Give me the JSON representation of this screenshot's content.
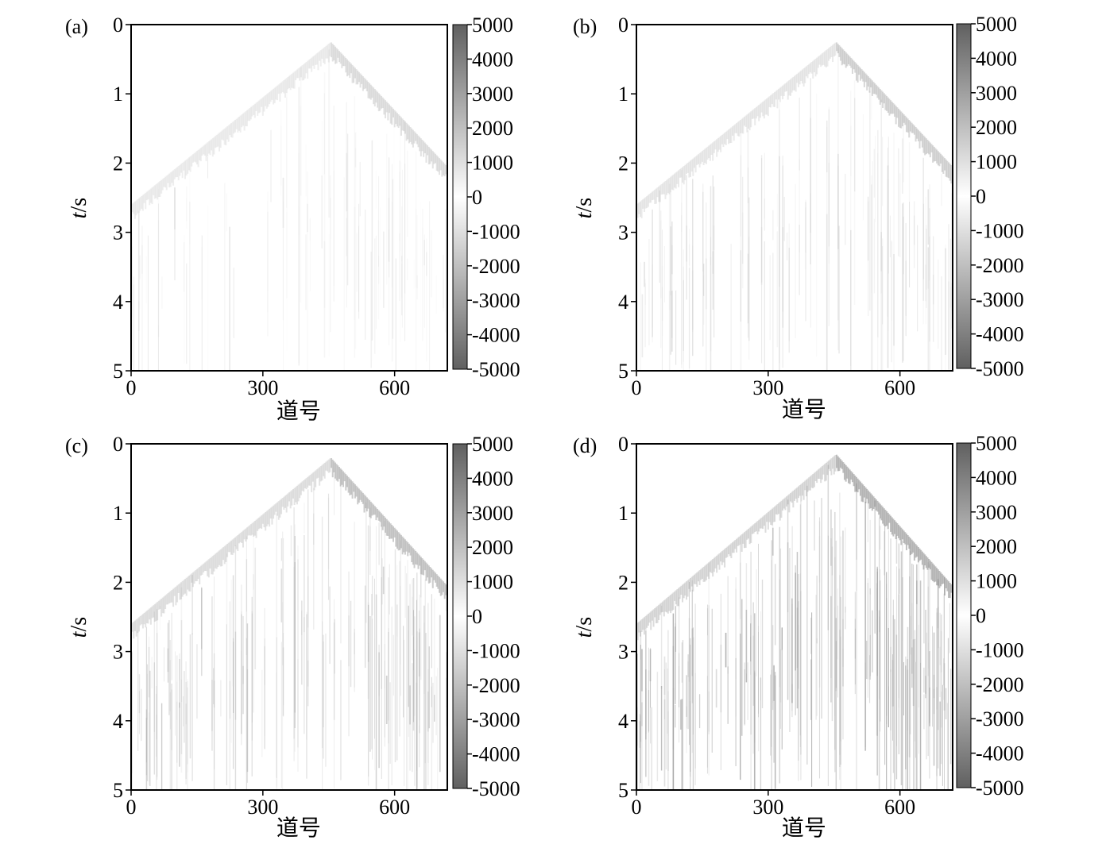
{
  "chart_data": [
    {
      "type": "heatmap",
      "panel_label": "(a)",
      "xlabel": "道号",
      "ylabel_italic": "t",
      "ylabel_unit": "/s",
      "xlim": [
        0,
        720
      ],
      "ylim": [
        0,
        5
      ],
      "x_ticks": [
        0,
        300,
        600
      ],
      "y_ticks": [
        0,
        1,
        2,
        3,
        4,
        5
      ],
      "colorbar_ticks": [
        5000,
        4000,
        3000,
        2000,
        1000,
        0,
        -1000,
        -2000,
        -3000,
        -4000,
        -5000
      ],
      "colorbar_range": [
        -5000,
        5000
      ],
      "colormap": "gray (dark at ±5000, white at 0)",
      "apex": {
        "trace": 455,
        "time": 0.25
      },
      "intensity": 0.45
    },
    {
      "type": "heatmap",
      "panel_label": "(b)",
      "xlabel": "道号",
      "ylabel_italic": "t",
      "ylabel_unit": "/s",
      "xlim": [
        0,
        720
      ],
      "ylim": [
        0,
        5
      ],
      "x_ticks": [
        0,
        300,
        600
      ],
      "y_ticks": [
        0,
        1,
        2,
        3,
        4,
        5
      ],
      "colorbar_ticks": [
        5000,
        4000,
        3000,
        2000,
        1000,
        0,
        -1000,
        -2000,
        -3000,
        -4000,
        -5000
      ],
      "colorbar_range": [
        -5000,
        5000
      ],
      "colormap": "gray (dark at ±5000, white at 0)",
      "apex": {
        "trace": 455,
        "time": 0.25
      },
      "intensity": 0.6
    },
    {
      "type": "heatmap",
      "panel_label": "(c)",
      "xlabel": "道号",
      "ylabel_italic": "t",
      "ylabel_unit": "/s",
      "xlim": [
        0,
        720
      ],
      "ylim": [
        0,
        5
      ],
      "x_ticks": [
        0,
        300,
        600
      ],
      "y_ticks": [
        0,
        1,
        2,
        3,
        4,
        5
      ],
      "colorbar_ticks": [
        5000,
        4000,
        3000,
        2000,
        1000,
        0,
        -1000,
        -2000,
        -3000,
        -4000,
        -5000
      ],
      "colorbar_range": [
        -5000,
        5000
      ],
      "colormap": "gray (dark at ±5000, white at 0)",
      "apex": {
        "trace": 455,
        "time": 0.2
      },
      "intensity": 0.8
    },
    {
      "type": "heatmap",
      "panel_label": "(d)",
      "xlabel": "道号",
      "ylabel_italic": "t",
      "ylabel_unit": "/s",
      "xlim": [
        0,
        720
      ],
      "ylim": [
        0,
        5
      ],
      "x_ticks": [
        0,
        300,
        600
      ],
      "y_ticks": [
        0,
        1,
        2,
        3,
        4,
        5
      ],
      "colorbar_ticks": [
        5000,
        4000,
        3000,
        2000,
        1000,
        0,
        -1000,
        -2000,
        -3000,
        -4000,
        -5000
      ],
      "colorbar_range": [
        -5000,
        5000
      ],
      "colormap": "gray (dark at ±5000, white at 0)",
      "apex": {
        "trace": 455,
        "time": 0.15
      },
      "intensity": 1.0
    }
  ]
}
